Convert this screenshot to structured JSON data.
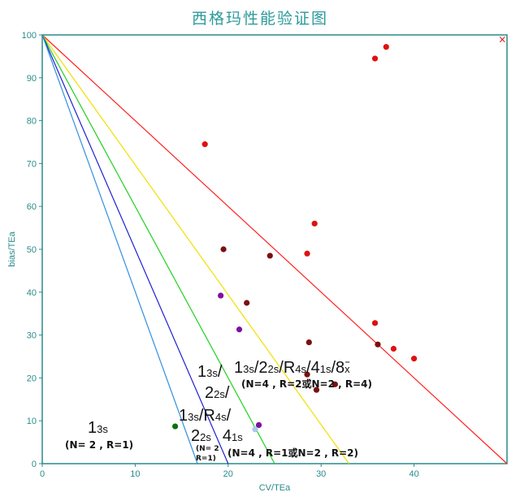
{
  "chart_data": {
    "type": "scatter",
    "title": "西格玛性能验证图",
    "xlabel": "CV/TEa",
    "ylabel": "bias/TEa",
    "xlim": [
      0,
      50
    ],
    "ylim": [
      0,
      100
    ],
    "xticks": [
      "0",
      "10",
      "20",
      "30",
      "40"
    ],
    "yticks": [
      "0",
      "10",
      "20",
      "30",
      "40",
      "50",
      "60",
      "70",
      "80",
      "90",
      "100"
    ],
    "grid": false,
    "colors": {
      "axis": "#2a8a8a",
      "line_13s": "#ff2020",
      "line_yellow": "#f0e000",
      "line_green": "#20d020",
      "line_blue": "#2020d0",
      "line_cyan": "#3090e0",
      "point_red": "#e01010",
      "point_darkred": "#7a1010",
      "point_purple": "#8010a0",
      "point_green": "#107010",
      "point_lightblue": "#a8c8e8"
    },
    "rule_lines": [
      {
        "x_intercept": 50,
        "y_intercept": 100,
        "color": "#ff2020"
      },
      {
        "x_intercept": 33,
        "y_intercept": 100,
        "color": "#f0e000"
      },
      {
        "x_intercept": 25,
        "y_intercept": 100,
        "color": "#20d020"
      },
      {
        "x_intercept": 20,
        "y_intercept": 100,
        "color": "#2020d0"
      },
      {
        "x_intercept": 16.7,
        "y_intercept": 100,
        "color": "#3090e0"
      }
    ],
    "points": [
      {
        "x": 17.5,
        "y": 74.5,
        "color": "#e01010"
      },
      {
        "x": 35.8,
        "y": 94.5,
        "color": "#e01010"
      },
      {
        "x": 37.0,
        "y": 97.2,
        "color": "#e01010"
      },
      {
        "x": 29.3,
        "y": 56.0,
        "color": "#e01010"
      },
      {
        "x": 28.5,
        "y": 49.0,
        "color": "#e01010"
      },
      {
        "x": 35.8,
        "y": 32.8,
        "color": "#e01010"
      },
      {
        "x": 37.8,
        "y": 26.8,
        "color": "#e01010"
      },
      {
        "x": 40.0,
        "y": 24.5,
        "color": "#e01010"
      },
      {
        "x": 19.5,
        "y": 50.0,
        "color": "#7a1010"
      },
      {
        "x": 24.5,
        "y": 48.5,
        "color": "#7a1010"
      },
      {
        "x": 22.0,
        "y": 37.5,
        "color": "#7a1010"
      },
      {
        "x": 28.7,
        "y": 28.3,
        "color": "#7a1010"
      },
      {
        "x": 36.1,
        "y": 27.8,
        "color": "#7a1010"
      },
      {
        "x": 28.5,
        "y": 20.8,
        "color": "#7a1010"
      },
      {
        "x": 31.5,
        "y": 18.5,
        "color": "#7a1010"
      },
      {
        "x": 29.5,
        "y": 17.2,
        "color": "#7a1010"
      },
      {
        "x": 19.2,
        "y": 39.2,
        "color": "#8010a0"
      },
      {
        "x": 21.2,
        "y": 31.3,
        "color": "#8010a0"
      },
      {
        "x": 23.3,
        "y": 9.0,
        "color": "#8010a0"
      },
      {
        "x": 14.3,
        "y": 8.7,
        "color": "#107010"
      },
      {
        "x": 22.9,
        "y": 8.0,
        "color": "#a8c8e8"
      }
    ],
    "corner_marker": {
      "x": 49.5,
      "y": 99.0,
      "symbol": "×",
      "color": "#e01010"
    },
    "annotations": [
      {
        "id": "rule1",
        "main": "1",
        "sub": "3s",
        "note": "(N= 2 , R=1)"
      },
      {
        "id": "rule2",
        "main": "1",
        "sub": "3s",
        "sep": "/",
        "main2": "R",
        "sub2": "4s",
        "sep2": "/",
        "main3": "2",
        "sub3": "2s",
        "main4": "4",
        "sub4": "1s",
        "note": "(N= 2",
        "note2": "R=1)",
        "note3": "(N=4 , R=1或N=2 , R=2)"
      },
      {
        "id": "rule3",
        "main": "1",
        "sub": "3s",
        "sep": "/",
        "main2": "2",
        "sub2": "2s",
        "sep2": "/",
        "main3": "R",
        "sub3": "4s",
        "sep3": "/",
        "main4": "4",
        "sub4": "1s",
        "sep4": "/",
        "main5": "8",
        "sub5": "x",
        "note": "(N=4 , R=2或N=2 , R=4)"
      },
      {
        "id": "rule4",
        "main": "1",
        "sub": "3s",
        "sep": "/",
        "main2": "2",
        "sub2": "2s",
        "sep2": "/"
      }
    ]
  }
}
